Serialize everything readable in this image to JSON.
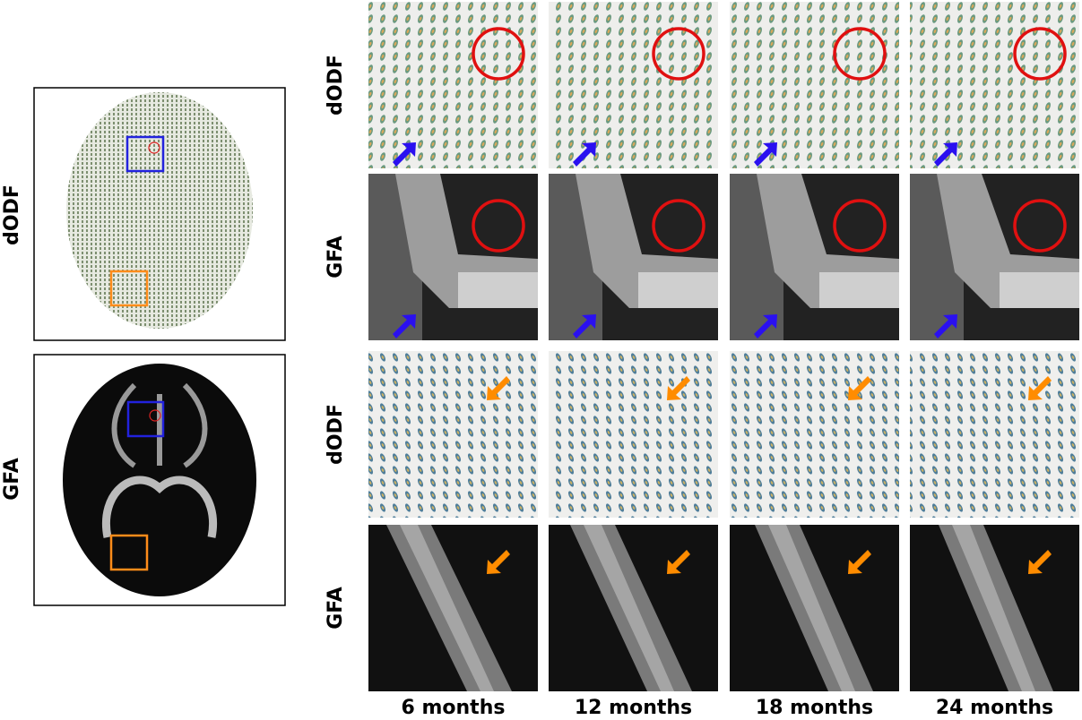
{
  "left_panels": {
    "row_labels": [
      "dODF",
      "GFA"
    ]
  },
  "grid": {
    "row_labels": [
      "dODF",
      "GFA",
      "dODF",
      "GFA"
    ],
    "column_labels": [
      "6 months",
      "12 months",
      "18 months",
      "24 months"
    ]
  }
}
